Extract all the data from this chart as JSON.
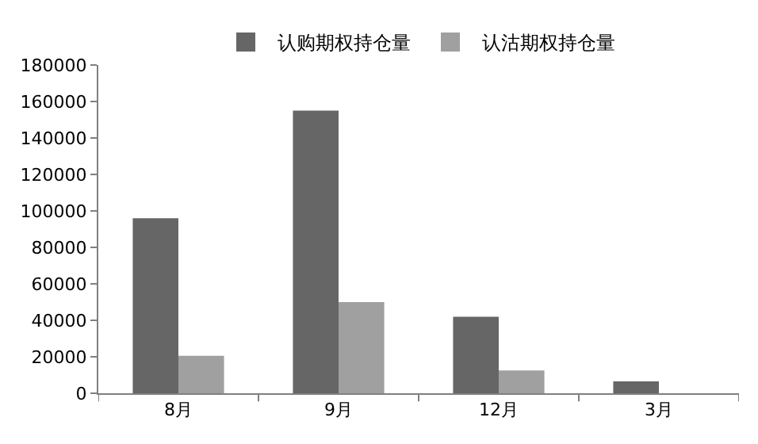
{
  "chart_data": {
    "type": "bar",
    "categories": [
      "8月",
      "9月",
      "12月",
      "3月"
    ],
    "series": [
      {
        "name": "认购期权持仓量",
        "color": "#666666",
        "values": [
          96000,
          155000,
          42000,
          6500
        ]
      },
      {
        "name": "认沽期权持仓量",
        "color": "#a0a0a0",
        "values": [
          20500,
          50000,
          12500,
          0
        ]
      }
    ],
    "ylim": [
      0,
      180000
    ],
    "yticks": [
      0,
      20000,
      40000,
      60000,
      80000,
      100000,
      120000,
      140000,
      160000,
      180000
    ],
    "grid": false,
    "legend": "top"
  }
}
